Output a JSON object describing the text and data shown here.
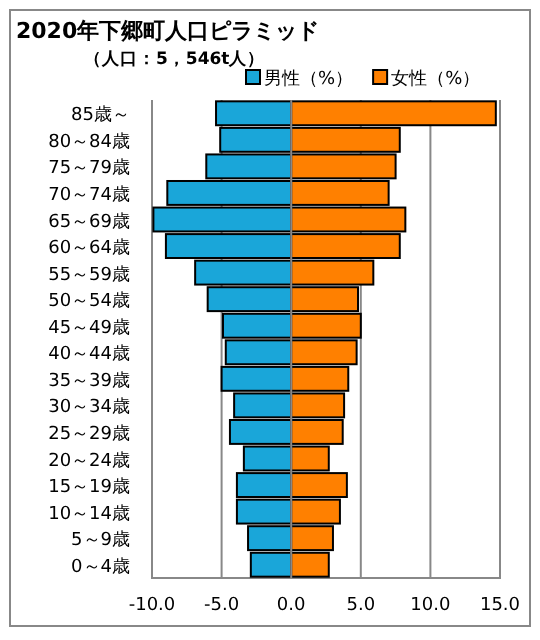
{
  "chart_data": {
    "type": "bar",
    "orientation": "horizontal",
    "title": "2020年下郷町人口ピラミッド",
    "subtitle": "（人口：5，546t人）",
    "categories": [
      "85歳～",
      "80～84歳",
      "75～79歳",
      "70～74歳",
      "65～69歳",
      "60～64歳",
      "55～59歳",
      "50～54歳",
      "45～49歳",
      "40～44歳",
      "35～39歳",
      "30～34歳",
      "25～29歳",
      "20～24歳",
      "15～19歳",
      "10～14歳",
      "5～9歳",
      "0～4歳"
    ],
    "series": [
      {
        "name": "男性（%）",
        "color": "#1aa6d9",
        "values": [
          -5.4,
          -5.1,
          -6.1,
          -8.9,
          -9.9,
          -9.0,
          -6.9,
          -6.0,
          -4.9,
          -4.7,
          -5.0,
          -4.1,
          -4.4,
          -3.4,
          -3.9,
          -3.9,
          -3.1,
          -2.9
        ]
      },
      {
        "name": "女性（%）",
        "color": "#ff8000",
        "values": [
          14.7,
          7.8,
          7.5,
          7.0,
          8.2,
          7.8,
          5.9,
          4.8,
          5.0,
          4.7,
          4.1,
          3.8,
          3.7,
          2.7,
          4.0,
          3.5,
          3.0,
          2.7
        ]
      }
    ],
    "xlim": [
      -10,
      15
    ],
    "xticks": [
      {
        "value": -10,
        "label": "-10.0"
      },
      {
        "value": -5,
        "label": "-5.0"
      },
      {
        "value": 0,
        "label": "0.0"
      },
      {
        "value": 5,
        "label": "5.0"
      },
      {
        "value": 10,
        "label": "10.0"
      },
      {
        "value": 15,
        "label": "15.0"
      }
    ],
    "grid": "x",
    "legend": "top",
    "stacked": true
  }
}
